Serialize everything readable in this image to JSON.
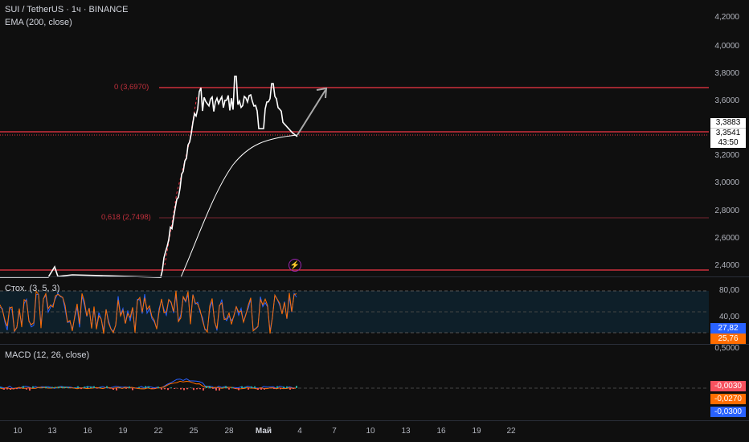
{
  "header": {
    "symbol_line": "SUI / TetherUS · 1ч · BINANCE",
    "ema_legend": "EMA (200, close)"
  },
  "price_axis": [
    "4,2000",
    "4,0000",
    "3,8000",
    "3,6000",
    "3,2000",
    "3,0000",
    "2,8000",
    "2,6000",
    "2,4000"
  ],
  "price_badges": {
    "current": "3,3883",
    "ema": "3,3541",
    "timer": "43:50"
  },
  "fib_levels": [
    {
      "label": "0 (3,6970)"
    },
    {
      "label": "0,618 (2,7498)"
    }
  ],
  "stoch": {
    "legend": "Стох. (3, 5, 3)",
    "axis": [
      "80,00",
      "40,00"
    ],
    "badge_k": "27,82",
    "badge_d": "25,76",
    "colors": {
      "k": "#2962ff",
      "d": "#ff6d00"
    }
  },
  "macd": {
    "legend": "MACD (12, 26, close)",
    "axis": [
      "0,5000"
    ],
    "badges": [
      "-0,0030",
      "-0,0270",
      "-0,0300"
    ],
    "badge_colors": [
      "#f7525f",
      "#ff6d00",
      "#2962ff"
    ]
  },
  "time_axis": [
    "10",
    "13",
    "16",
    "19",
    "22",
    "25",
    "28",
    "Май",
    "4",
    "7",
    "10",
    "13",
    "16",
    "19",
    "22"
  ],
  "colors": {
    "price_line": "#ffffff",
    "level_line": "#f23645",
    "fib_text": "#c2303c"
  }
}
